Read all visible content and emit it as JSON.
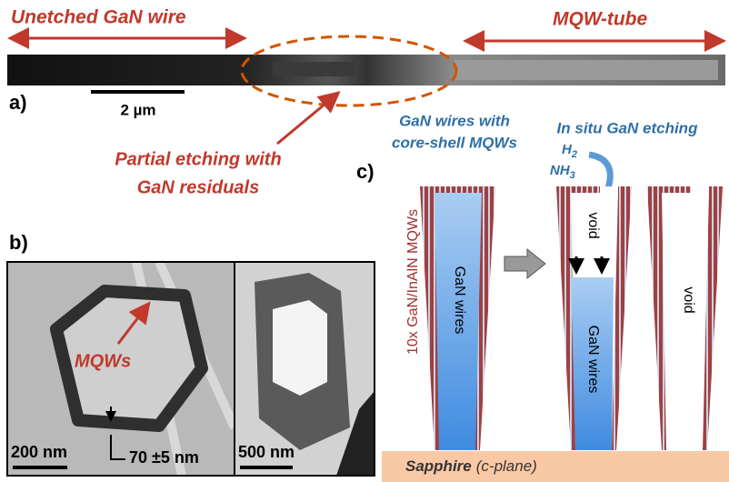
{
  "panel_a": {
    "label": "a)",
    "left_label": "Unetched GaN wire",
    "right_label": "MQW-tube",
    "scale_bar": "2 µm",
    "annotation": [
      "Partial etching with",
      "GaN residuals"
    ]
  },
  "panel_b": {
    "label": "b)",
    "annotation": "MQWs",
    "scale_bar_left": "200 nm",
    "thickness": "70 ±5 nm",
    "scale_bar_right": "500 nm"
  },
  "panel_c": {
    "label": "c)",
    "caption_left": [
      "GaN wires with",
      "core-shell MQWs"
    ],
    "caption_right": "In situ GaN etching",
    "gas_1": {
      "base": "H",
      "sub": "2"
    },
    "gas_2": {
      "base": "NH",
      "sub": "3"
    },
    "mqw_label": "10x GaN/InAlN MQWs",
    "wire_label_1": "GaN wires",
    "wire_label_2": "GaN wires",
    "void_1": "void",
    "void_2": "void",
    "substrate": "Sapphire",
    "substrate_note": "(c-plane)"
  }
}
